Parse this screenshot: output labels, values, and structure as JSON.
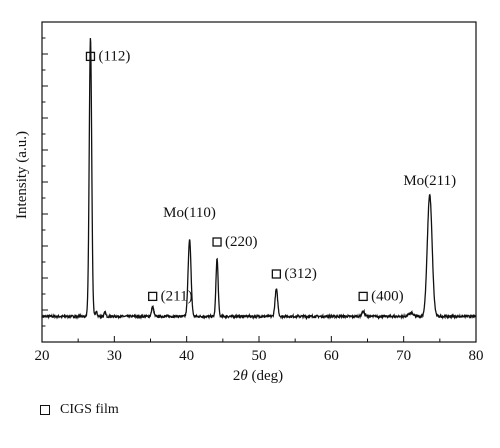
{
  "chart_data": {
    "type": "line",
    "title": "",
    "xlabel_prefix": "2",
    "xlabel_symbol": "θ",
    "xlabel_suffix": " (deg)",
    "ylabel": "Intensity (a.u.)",
    "xlim": [
      20,
      80
    ],
    "x_ticks": [
      20,
      30,
      40,
      50,
      60,
      70,
      80
    ],
    "ylim": [
      0,
      100
    ],
    "show_y_tick_labels": false,
    "grid": false,
    "baseline": 8,
    "noise_amplitude": 0.35,
    "series": [
      {
        "color": "#111111",
        "peaks": [
          {
            "x": 26.7,
            "height": 87,
            "width": 0.17
          },
          {
            "x": 27.5,
            "height": 1.5,
            "width": 0.12
          },
          {
            "x": 28.7,
            "height": 1.2,
            "width": 0.12
          },
          {
            "x": 35.3,
            "height": 3.0,
            "width": 0.15
          },
          {
            "x": 40.4,
            "height": 24,
            "width": 0.2
          },
          {
            "x": 44.2,
            "height": 18,
            "width": 0.15
          },
          {
            "x": 52.4,
            "height": 8.5,
            "width": 0.18
          },
          {
            "x": 64.4,
            "height": 1.6,
            "width": 0.2
          },
          {
            "x": 71.0,
            "height": 1.0,
            "width": 0.3
          },
          {
            "x": 73.6,
            "height": 38,
            "width": 0.33
          }
        ]
      }
    ],
    "annotations": [
      {
        "text": "(112)",
        "marker": "square",
        "x": 26.7,
        "y": 88
      },
      {
        "text": "(211)",
        "marker": "square",
        "x": 35.3,
        "y": 13
      },
      {
        "text": "Mo(110)",
        "marker": "none",
        "x": 40.4,
        "y": 39
      },
      {
        "text": "(220)",
        "marker": "square",
        "x": 44.2,
        "y": 30
      },
      {
        "text": "(312)",
        "marker": "square",
        "x": 52.4,
        "y": 20
      },
      {
        "text": "(400)",
        "marker": "square",
        "x": 64.4,
        "y": 13
      },
      {
        "text": "Mo(211)",
        "marker": "none",
        "x": 73.6,
        "y": 49
      }
    ],
    "legend": {
      "placement": "bottom-left",
      "entries": [
        {
          "marker": "square",
          "label": "CIGS film"
        }
      ]
    }
  }
}
